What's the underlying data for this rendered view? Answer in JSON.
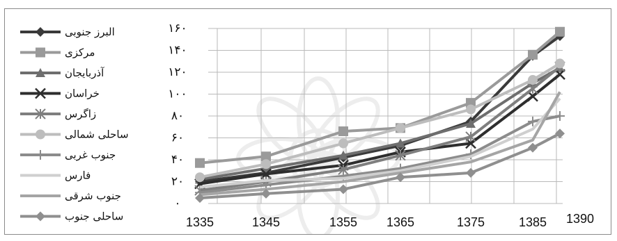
{
  "chart_data": {
    "type": "line",
    "x": [
      1335,
      1345,
      1355,
      1365,
      1375,
      1385,
      1390
    ],
    "x_tick_labels": [
      "1335",
      "1345",
      "1355",
      "1365",
      "1375",
      "1385",
      "1390"
    ],
    "y_tick_labels": [
      "۰",
      "۲۰",
      "۴۰",
      "۶۰",
      "۸۰",
      "۱۰۰",
      "۱۲۰",
      "۱۴۰",
      "۱۶۰"
    ],
    "ylim": [
      0,
      160
    ],
    "grid": true,
    "legend_position": "left",
    "series": [
      {
        "name": "البرز جنوبی",
        "marker": "diamond",
        "color": "#3a3a3a",
        "values": [
          20,
          28,
          42,
          53,
          75,
          135,
          153
        ]
      },
      {
        "name": "مرکزی",
        "marker": "square",
        "color": "#9a9a9a",
        "values": [
          37,
          43,
          66,
          69,
          92,
          136,
          157
        ]
      },
      {
        "name": "آذربایجان",
        "marker": "triangle",
        "color": "#6e6e6e",
        "values": [
          22,
          32,
          44,
          55,
          73,
          110,
          124
        ]
      },
      {
        "name": "خراسان",
        "marker": "x",
        "color": "#2e2e2e",
        "values": [
          18,
          27,
          35,
          47,
          55,
          98,
          118
        ]
      },
      {
        "name": "زاگرس",
        "marker": "star",
        "color": "#7f7f7f",
        "values": [
          12,
          20,
          31,
          44,
          61,
          105,
          125
        ]
      },
      {
        "name": "ساحلی شمالی",
        "marker": "circle",
        "color": "#bdbdbd",
        "values": [
          24,
          36,
          55,
          69,
          86,
          113,
          128
        ]
      },
      {
        "name": "جنوب غربی",
        "marker": "plus",
        "color": "#8c8c8c",
        "values": [
          10,
          17,
          25,
          32,
          45,
          75,
          80
        ]
      },
      {
        "name": "فارس",
        "marker": "none",
        "color": "#cfcfcf",
        "values": [
          15,
          21,
          23,
          30,
          43,
          68,
          96
        ]
      },
      {
        "name": "جنوب شرقی",
        "marker": "none",
        "color": "#a5a5a5",
        "values": [
          8,
          13,
          20,
          28,
          38,
          58,
          102
        ]
      },
      {
        "name": "ساحلی جنوب",
        "marker": "diamond",
        "color": "#8f8f8f",
        "values": [
          5,
          9,
          13,
          24,
          28,
          51,
          64
        ]
      }
    ]
  }
}
